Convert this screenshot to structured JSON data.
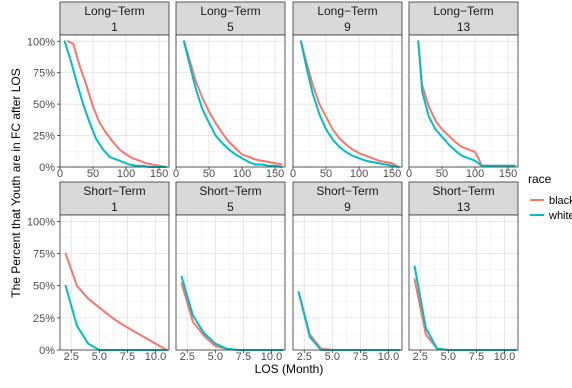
{
  "chart_data": {
    "type": "line",
    "ylabel": "The Percent that Youth are in FC after LOS",
    "xlabel": "LOS (Month)",
    "legend": {
      "title": "race",
      "placement": "right",
      "entries": [
        {
          "name": "black",
          "color": "#F8766D"
        },
        {
          "name": "white",
          "color": "#00BFC4"
        }
      ]
    },
    "y_ticks": [
      "0%",
      "25%",
      "50%",
      "75%",
      "100%"
    ],
    "ylim": [
      0,
      1.05
    ],
    "facets": [
      {
        "strip_top": "Long−Term",
        "strip_bottom": "1",
        "xlim": [
          0,
          165
        ],
        "x_ticks": [
          0,
          50,
          100,
          150
        ],
        "x_tick_labels": [
          "0",
          "50",
          "100",
          "150"
        ],
        "series": [
          {
            "name": "black",
            "x": [
              12,
              20,
              30,
              40,
              50,
              60,
              70,
              80,
              90,
              100,
              110,
              120,
              130,
              140,
              150,
              160
            ],
            "y": [
              1.0,
              0.98,
              0.8,
              0.65,
              0.48,
              0.35,
              0.27,
              0.2,
              0.14,
              0.1,
              0.07,
              0.05,
              0.03,
              0.02,
              0.01,
              0.0
            ]
          },
          {
            "name": "white",
            "x": [
              7,
              15,
              25,
              35,
              45,
              55,
              65,
              75,
              85,
              95,
              105,
              115,
              125,
              135,
              145,
              155,
              160
            ],
            "y": [
              1.0,
              0.87,
              0.68,
              0.5,
              0.35,
              0.22,
              0.14,
              0.08,
              0.06,
              0.04,
              0.02,
              0.01,
              0.01,
              0.0,
              0.0,
              0.0,
              0.0
            ]
          }
        ]
      },
      {
        "strip_top": "Long−Term",
        "strip_bottom": "5",
        "xlim": [
          0,
          165
        ],
        "x_ticks": [
          0,
          50,
          100,
          150
        ],
        "x_tick_labels": [
          "0",
          "50",
          "100",
          "150"
        ],
        "series": [
          {
            "name": "black",
            "x": [
              12,
              20,
              30,
              40,
              50,
              60,
              70,
              80,
              90,
              100,
              110,
              120,
              130,
              140,
              150,
              160
            ],
            "y": [
              1.0,
              0.86,
              0.68,
              0.55,
              0.44,
              0.35,
              0.27,
              0.2,
              0.15,
              0.1,
              0.08,
              0.06,
              0.05,
              0.04,
              0.03,
              0.02
            ]
          },
          {
            "name": "white",
            "x": [
              12,
              20,
              30,
              40,
              50,
              60,
              70,
              80,
              90,
              100,
              110,
              120,
              130,
              140,
              150,
              160
            ],
            "y": [
              1.0,
              0.83,
              0.62,
              0.46,
              0.35,
              0.25,
              0.19,
              0.14,
              0.1,
              0.07,
              0.04,
              0.02,
              0.02,
              0.01,
              0.01,
              0.0
            ]
          }
        ]
      },
      {
        "strip_top": "Long−Term",
        "strip_bottom": "9",
        "xlim": [
          0,
          165
        ],
        "x_ticks": [
          0,
          50,
          100,
          150
        ],
        "x_tick_labels": [
          "0",
          "50",
          "100",
          "150"
        ],
        "series": [
          {
            "name": "black",
            "x": [
              12,
              20,
              30,
              40,
              50,
              60,
              70,
              80,
              90,
              100,
              110,
              120,
              130,
              140,
              150,
              160
            ],
            "y": [
              1.0,
              0.84,
              0.65,
              0.5,
              0.4,
              0.3,
              0.23,
              0.18,
              0.14,
              0.11,
              0.09,
              0.07,
              0.05,
              0.04,
              0.03,
              0.0
            ]
          },
          {
            "name": "white",
            "x": [
              12,
              20,
              30,
              40,
              50,
              60,
              70,
              80,
              90,
              100,
              110,
              120,
              130,
              140,
              150,
              160
            ],
            "y": [
              1.0,
              0.8,
              0.58,
              0.42,
              0.3,
              0.22,
              0.16,
              0.12,
              0.09,
              0.07,
              0.05,
              0.04,
              0.03,
              0.02,
              0.01,
              0.0
            ]
          }
        ]
      },
      {
        "strip_top": "Long−Term",
        "strip_bottom": "13",
        "xlim": [
          0,
          165
        ],
        "x_ticks": [
          0,
          50,
          100,
          150
        ],
        "x_tick_labels": [
          "0",
          "50",
          "100",
          "150"
        ],
        "series": [
          {
            "name": "black",
            "x": [
              14,
              20,
              30,
              40,
              50,
              60,
              70,
              80,
              90,
              100,
              105,
              110,
              120,
              130,
              140,
              150,
              160
            ],
            "y": [
              1.0,
              0.65,
              0.48,
              0.37,
              0.3,
              0.25,
              0.2,
              0.16,
              0.14,
              0.12,
              0.07,
              0.01,
              0.01,
              0.01,
              0.01,
              0.01,
              0.01
            ]
          },
          {
            "name": "white",
            "x": [
              14,
              20,
              30,
              40,
              50,
              60,
              70,
              80,
              90,
              100,
              110,
              120,
              130,
              140,
              150,
              160
            ],
            "y": [
              1.0,
              0.6,
              0.4,
              0.3,
              0.24,
              0.18,
              0.13,
              0.09,
              0.07,
              0.05,
              0.01,
              0.01,
              0.01,
              0.01,
              0.01,
              0.01
            ]
          }
        ]
      },
      {
        "strip_top": "Short−Term",
        "strip_bottom": "1",
        "xlim": [
          1.5,
          11.2
        ],
        "x_ticks": [
          2.5,
          5.0,
          7.5,
          10.0
        ],
        "x_tick_labels": [
          "2.5",
          "5.0",
          "7.5",
          "10.0"
        ],
        "series": [
          {
            "name": "black",
            "x": [
              2,
              3,
              4,
              5,
              6,
              7,
              8,
              9,
              10,
              11
            ],
            "y": [
              0.75,
              0.5,
              0.4,
              0.33,
              0.26,
              0.2,
              0.15,
              0.1,
              0.05,
              0.0
            ]
          },
          {
            "name": "white",
            "x": [
              2,
              3,
              4,
              5,
              6,
              7,
              8,
              9,
              10,
              11
            ],
            "y": [
              0.5,
              0.19,
              0.05,
              0.0,
              0.0,
              0.0,
              0.0,
              0.0,
              0.0,
              0.0
            ]
          }
        ]
      },
      {
        "strip_top": "Short−Term",
        "strip_bottom": "5",
        "xlim": [
          1.5,
          11.2
        ],
        "x_ticks": [
          2.5,
          5.0,
          7.5,
          10.0
        ],
        "x_tick_labels": [
          "2.5",
          "5.0",
          "7.5",
          "10.0"
        ],
        "series": [
          {
            "name": "black",
            "x": [
              2,
              3,
              4,
              5,
              6,
              7,
              8,
              9,
              10,
              11
            ],
            "y": [
              0.52,
              0.22,
              0.11,
              0.03,
              0.01,
              0.0,
              0.0,
              0.0,
              0.0,
              0.0
            ]
          },
          {
            "name": "white",
            "x": [
              2,
              3,
              4,
              5,
              6,
              7,
              8,
              9,
              10,
              11
            ],
            "y": [
              0.57,
              0.27,
              0.13,
              0.05,
              0.01,
              0.0,
              0.0,
              0.0,
              0.0,
              0.0
            ]
          }
        ]
      },
      {
        "strip_top": "Short−Term",
        "strip_bottom": "9",
        "xlim": [
          1.5,
          11.2
        ],
        "x_ticks": [
          2.5,
          5.0,
          7.5,
          10.0
        ],
        "x_tick_labels": [
          "2.5",
          "5.0",
          "7.5",
          "10.0"
        ],
        "series": [
          {
            "name": "black",
            "x": [
              2,
              3,
              4,
              5,
              6,
              7,
              8,
              9,
              10,
              11
            ],
            "y": [
              0.45,
              0.12,
              0.01,
              0.0,
              0.0,
              0.0,
              0.0,
              0.0,
              0.0,
              0.0
            ]
          },
          {
            "name": "white",
            "x": [
              2,
              3,
              4,
              5,
              6,
              7,
              8,
              9,
              10,
              11
            ],
            "y": [
              0.45,
              0.1,
              0.0,
              0.0,
              0.0,
              0.0,
              0.0,
              0.0,
              0.0,
              0.0
            ]
          }
        ]
      },
      {
        "strip_top": "Short−Term",
        "strip_bottom": "13",
        "xlim": [
          1.5,
          11.2
        ],
        "x_ticks": [
          2.5,
          5.0,
          7.5,
          10.0
        ],
        "x_tick_labels": [
          "2.5",
          "5.0",
          "7.5",
          "10.0"
        ],
        "series": [
          {
            "name": "black",
            "x": [
              2,
              3,
              4,
              5,
              6,
              7,
              8,
              9,
              10,
              11
            ],
            "y": [
              0.55,
              0.12,
              0.01,
              0.0,
              0.0,
              0.0,
              0.0,
              0.0,
              0.0,
              0.0
            ]
          },
          {
            "name": "white",
            "x": [
              2,
              3,
              4,
              5,
              6,
              7,
              8,
              9,
              10,
              11
            ],
            "y": [
              0.65,
              0.17,
              0.01,
              0.0,
              0.0,
              0.0,
              0.0,
              0.0,
              0.0,
              0.0
            ]
          }
        ]
      }
    ]
  }
}
